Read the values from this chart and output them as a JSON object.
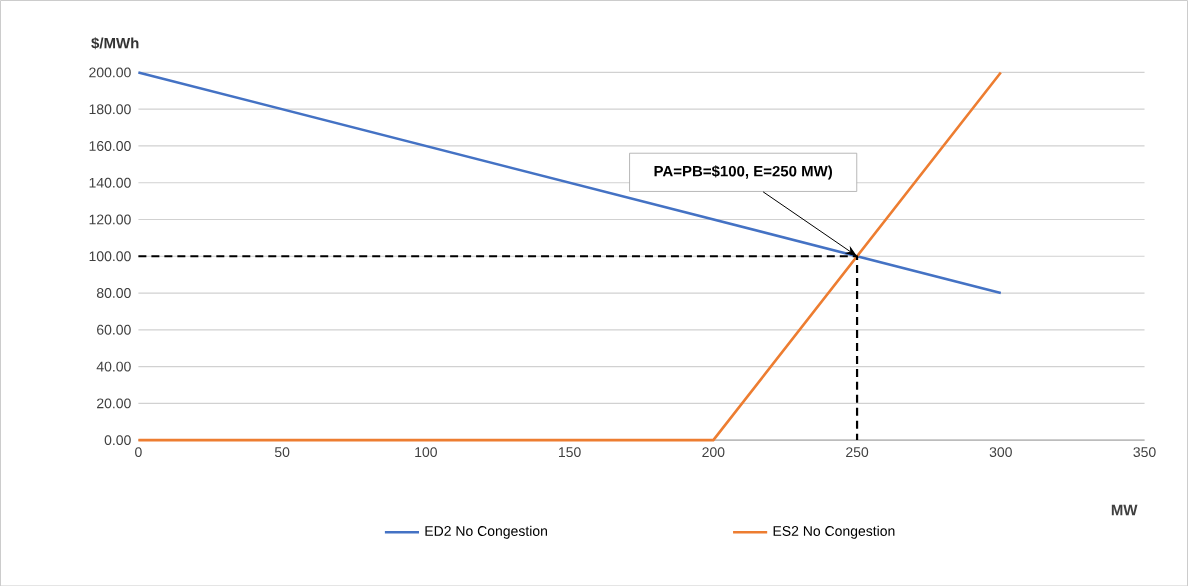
{
  "chart_data": {
    "type": "line",
    "xlabel": "MW",
    "ylabel": "$/MWh",
    "xlim": [
      0,
      350
    ],
    "ylim": [
      0,
      200
    ],
    "xticks": [
      0,
      50,
      100,
      150,
      200,
      250,
      300,
      350
    ],
    "yticks": [
      {
        "value": 0,
        "label": "0.00"
      },
      {
        "value": 20,
        "label": "20.00"
      },
      {
        "value": 40,
        "label": "40.00"
      },
      {
        "value": 60,
        "label": "60.00"
      },
      {
        "value": 80,
        "label": "80.00"
      },
      {
        "value": 100,
        "label": "100.00"
      },
      {
        "value": 120,
        "label": "120.00"
      },
      {
        "value": 140,
        "label": "140.00"
      },
      {
        "value": 160,
        "label": "160.00"
      },
      {
        "value": 180,
        "label": "180.00"
      },
      {
        "value": 200,
        "label": "200.00"
      }
    ],
    "grid": "y",
    "legend": "bottom",
    "marker": "none",
    "series": [
      {
        "name": "ED2 No Congestion",
        "color": "#4472c4",
        "x": [
          0,
          300
        ],
        "values": [
          200,
          80
        ]
      },
      {
        "name": "ES2 No Congestion",
        "color": "#ed7d31",
        "x": [
          0,
          200,
          300
        ],
        "values": [
          0,
          0,
          200
        ]
      },
      {
        "color": "#000000",
        "line_style": "dashed",
        "x": [
          0,
          250,
          250
        ],
        "values": [
          100,
          100,
          0
        ]
      }
    ],
    "annotations": [
      {
        "text": "PA=PB=$100, E=250 MW)",
        "x": 250,
        "y": 100
      }
    ]
  }
}
